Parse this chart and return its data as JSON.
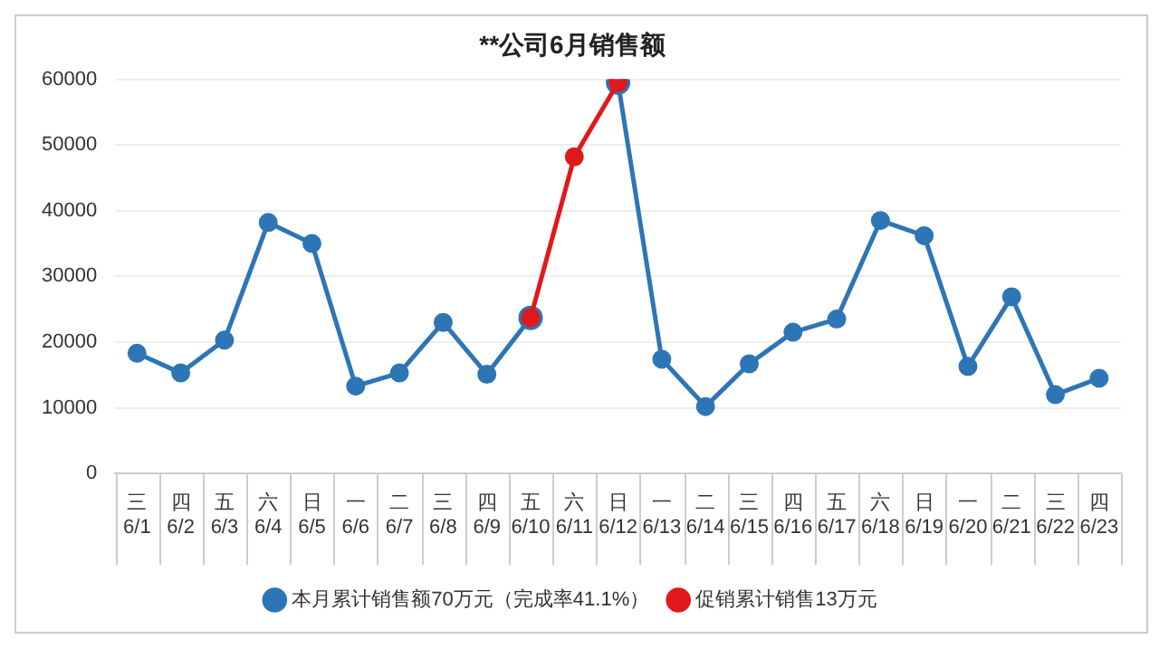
{
  "chart_data": {
    "type": "line",
    "title": "**公司6月销售额",
    "categories": [
      "三\n6/1",
      "四\n6/2",
      "五\n6/3",
      "六\n6/4",
      "日\n6/5",
      "一\n6/6",
      "二\n6/7",
      "三\n6/8",
      "四\n6/9",
      "五\n6/10",
      "六\n6/11",
      "日\n6/12",
      "一\n6/13",
      "二\n6/14",
      "三\n6/15",
      "四\n6/16",
      "五\n6/17",
      "六\n6/18",
      "日\n6/19",
      "一\n6/20",
      "二\n6/21",
      "三\n6/22",
      "四\n6/23"
    ],
    "series": [
      {
        "name": "本月累计销售额70万元（完成率41.1%）",
        "color": "#2e75b6",
        "values": [
          18300,
          15300,
          20300,
          38200,
          35000,
          13300,
          15300,
          23000,
          15100,
          23700,
          null,
          59500,
          17400,
          10200,
          16700,
          21500,
          23500,
          38500,
          36200,
          16300,
          26900,
          12000,
          14500
        ]
      },
      {
        "name": "促销累计销售13万元",
        "color": "#e0191b",
        "values": [
          null,
          null,
          null,
          null,
          null,
          null,
          null,
          null,
          null,
          23700,
          48200,
          59500,
          null,
          null,
          null,
          null,
          null,
          null,
          null,
          null,
          null,
          null,
          null
        ]
      }
    ],
    "ylim": [
      0,
      60000
    ],
    "yticks": [
      0,
      10000,
      20000,
      30000,
      40000,
      50000,
      60000
    ],
    "grid": "y",
    "legend": "bottom",
    "marker": "circle",
    "line_style": "solid"
  }
}
